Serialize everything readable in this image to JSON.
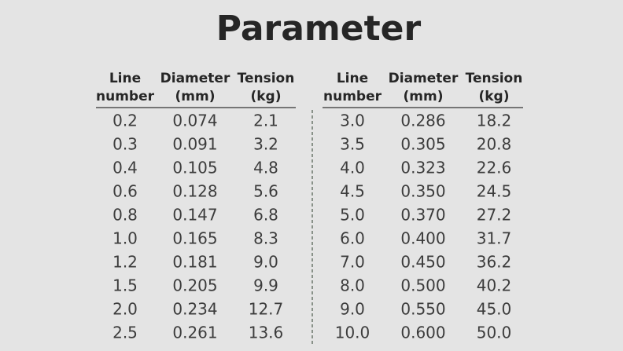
{
  "title": "Parameter",
  "tables": [
    {
      "headers": [
        [
          "Line",
          "number"
        ],
        [
          "Diameter",
          "(mm)"
        ],
        [
          "Tension",
          "(kg)"
        ]
      ],
      "rows": [
        [
          "0.2",
          "0.074",
          "2.1"
        ],
        [
          "0.3",
          "0.091",
          "3.2"
        ],
        [
          "0.4",
          "0.105",
          "4.8"
        ],
        [
          "0.6",
          "0.128",
          "5.6"
        ],
        [
          "0.8",
          "0.147",
          "6.8"
        ],
        [
          "1.0",
          "0.165",
          "8.3"
        ],
        [
          "1.2",
          "0.181",
          "9.0"
        ],
        [
          "1.5",
          "0.205",
          "9.9"
        ],
        [
          "2.0",
          "0.234",
          "12.7"
        ],
        [
          "2.5",
          "0.261",
          "13.6"
        ]
      ]
    },
    {
      "headers": [
        [
          "Line",
          "number"
        ],
        [
          "Diameter",
          "(mm)"
        ],
        [
          "Tension",
          "(kg)"
        ]
      ],
      "rows": [
        [
          "3.0",
          "0.286",
          "18.2"
        ],
        [
          "3.5",
          "0.305",
          "20.8"
        ],
        [
          "4.0",
          "0.323",
          "22.6"
        ],
        [
          "4.5",
          "0.350",
          "24.5"
        ],
        [
          "5.0",
          "0.370",
          "27.2"
        ],
        [
          "6.0",
          "0.400",
          "31.7"
        ],
        [
          "7.0",
          "0.450",
          "36.2"
        ],
        [
          "8.0",
          "0.500",
          "40.2"
        ],
        [
          "9.0",
          "0.550",
          "45.0"
        ],
        [
          "10.0",
          "0.600",
          "50.0"
        ]
      ]
    }
  ]
}
